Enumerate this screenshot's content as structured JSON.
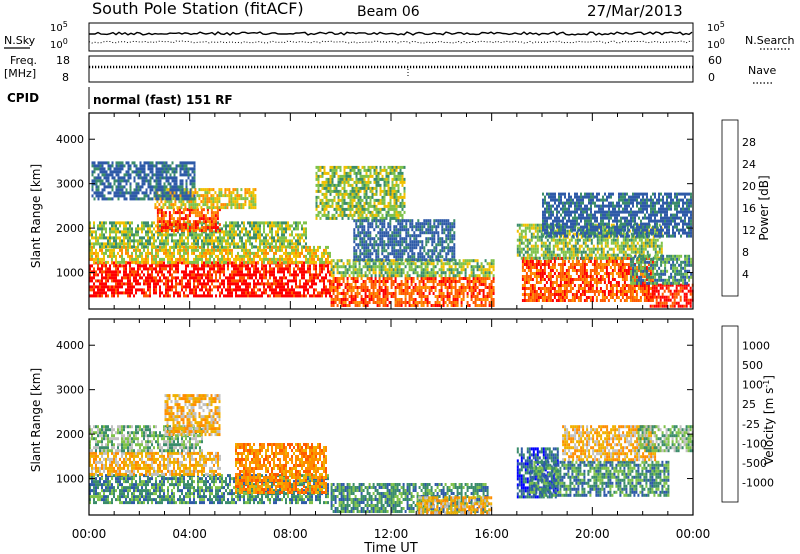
{
  "header": {
    "station": "South Pole Station (fitACF)",
    "beam": "Beam 06",
    "date": "27/Mar/2013"
  },
  "panels": {
    "nsky": {
      "left_label": "N.Sky",
      "right_label": "N.Search",
      "left_ticks": [
        "10^5",
        "10^0"
      ],
      "right_ticks": [
        "10^5",
        "10^0"
      ]
    },
    "freq": {
      "left_label": "Freq.",
      "left_unit": "[MHz]",
      "left_ticks": [
        "18",
        "8"
      ],
      "right_label": "Nave",
      "right_ticks": [
        "60",
        "0"
      ]
    },
    "cpid": {
      "label": "CPID",
      "value": "normal (fast) 151 RF"
    }
  },
  "chart_data": [
    {
      "type": "heatmap",
      "title": "",
      "xlabel": "",
      "ylabel": "Slant Range [km]",
      "x_range_hours": [
        0,
        24
      ],
      "ylim": [
        180,
        4590
      ],
      "yticks": [
        1000,
        2000,
        3000,
        4000
      ],
      "colorbar": {
        "label": "Power [dB]",
        "levels": [
          4,
          8,
          12,
          16,
          20,
          24,
          28
        ],
        "tick_labels": [
          "4",
          "8",
          "12",
          "16",
          "20",
          "24",
          "28"
        ],
        "colors": [
          "#0000ff",
          "#2e5aa8",
          "#3a8c6a",
          "#7fc24a",
          "#f0c000",
          "#ff8c00",
          "#ff5a00",
          "#ff0000"
        ]
      },
      "regions": [
        {
          "t": [
            0.0,
            9.6
          ],
          "r": [
            450,
            1250
          ],
          "level": 28
        },
        {
          "t": [
            0.0,
            9.6
          ],
          "r": [
            1250,
            1600
          ],
          "level": 16
        },
        {
          "t": [
            0.0,
            8.6
          ],
          "r": [
            1600,
            2150
          ],
          "level": 12
        },
        {
          "t": [
            2.7,
            5.2
          ],
          "r": [
            1950,
            2450
          ],
          "level": 24
        },
        {
          "t": [
            2.6,
            6.6
          ],
          "r": [
            2450,
            2900
          ],
          "level": 16
        },
        {
          "t": [
            0.1,
            4.2
          ],
          "r": [
            2650,
            3500
          ],
          "level": 4
        },
        {
          "t": [
            9.0,
            12.5
          ],
          "r": [
            2200,
            3400
          ],
          "level": 12
        },
        {
          "t": [
            9.6,
            16.1
          ],
          "r": [
            250,
            900
          ],
          "level": 24
        },
        {
          "t": [
            9.6,
            16.1
          ],
          "r": [
            900,
            1300
          ],
          "level": 12
        },
        {
          "t": [
            10.5,
            14.5
          ],
          "r": [
            1300,
            2200
          ],
          "level": 4
        },
        {
          "t": [
            17.2,
            22.4
          ],
          "r": [
            400,
            1350
          ],
          "level": 24
        },
        {
          "t": [
            17.0,
            22.8
          ],
          "r": [
            1350,
            2100
          ],
          "level": 12
        },
        {
          "t": [
            18.0,
            23.9
          ],
          "r": [
            1800,
            2800
          ],
          "level": 4
        },
        {
          "t": [
            22.2,
            24.0
          ],
          "r": [
            250,
            750
          ],
          "level": 28
        },
        {
          "t": [
            21.5,
            23.9
          ],
          "r": [
            750,
            1400
          ],
          "level": 8
        }
      ]
    },
    {
      "type": "heatmap",
      "title": "",
      "xlabel": "Time UT",
      "ylabel": "Slant Range [km]",
      "x_range_hours": [
        0,
        24
      ],
      "ylim": [
        180,
        4590
      ],
      "yticks": [
        1000,
        2000,
        3000,
        4000
      ],
      "xtick_labels": [
        "00:00",
        "04:00",
        "08:00",
        "12:00",
        "16:00",
        "20:00",
        "00:00"
      ],
      "colorbar": {
        "label": "Velocity [m s^-1]",
        "levels": [
          -1000,
          -500,
          -100,
          -25,
          25,
          100,
          500,
          1000
        ],
        "tick_labels": [
          "-1000",
          "-500",
          "-100",
          "-25",
          "25",
          "100",
          "500",
          "1000"
        ],
        "colors": [
          "#ff0000",
          "#ff5a00",
          "#ff8c00",
          "#f0b000",
          "#c0c0c0",
          "#7fc24a",
          "#3a8c6a",
          "#2e5aa8",
          "#0000ff"
        ]
      },
      "regions": [
        {
          "t": [
            0.0,
            9.5
          ],
          "r": [
            450,
            1100
          ],
          "level": 100
        },
        {
          "t": [
            0.0,
            5.2
          ],
          "r": [
            1100,
            1600
          ],
          "level": -100
        },
        {
          "t": [
            5.8,
            9.4
          ],
          "r": [
            700,
            1800
          ],
          "level": -500
        },
        {
          "t": [
            0.0,
            4.5
          ],
          "r": [
            1600,
            2200
          ],
          "level": 25
        },
        {
          "t": [
            3.0,
            5.2
          ],
          "r": [
            2000,
            2900
          ],
          "level": -100
        },
        {
          "t": [
            9.6,
            15.8
          ],
          "r": [
            250,
            900
          ],
          "level": 100
        },
        {
          "t": [
            13.0,
            16.0
          ],
          "r": [
            250,
            600
          ],
          "level": -100
        },
        {
          "t": [
            17.0,
            18.6
          ],
          "r": [
            600,
            1700
          ],
          "level": 500
        },
        {
          "t": [
            17.5,
            23.0
          ],
          "r": [
            600,
            1400
          ],
          "level": 100
        },
        {
          "t": [
            18.8,
            22.5
          ],
          "r": [
            1400,
            2200
          ],
          "level": -100
        },
        {
          "t": [
            21.8,
            24.0
          ],
          "r": [
            1600,
            2200
          ],
          "level": 25
        }
      ]
    }
  ]
}
